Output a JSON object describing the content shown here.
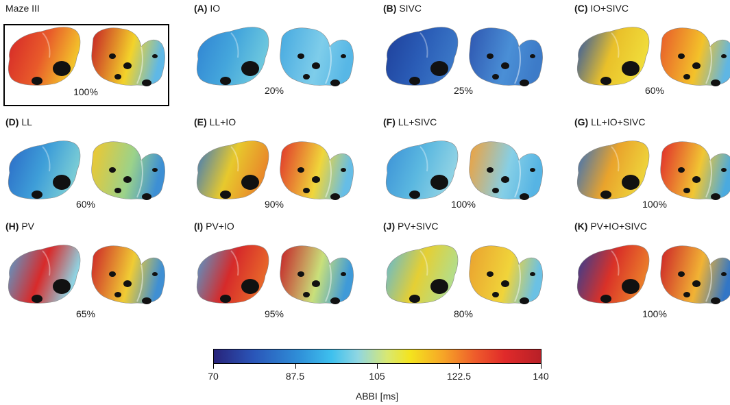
{
  "panels": [
    {
      "tag": "",
      "label": "Maze III",
      "pct": "100%",
      "highlight": true,
      "palette": {
        "l1": "#d42428",
        "l2": "#e85a2a",
        "l3": "#f3c22a",
        "r1": "#c51f26",
        "r2": "#f3d32a",
        "r3": "#5fb8e6"
      }
    },
    {
      "tag": "(A)",
      "label": "IO",
      "pct": "20%",
      "palette": {
        "l1": "#2f82d2",
        "l2": "#44a6dc",
        "l3": "#6cc7de",
        "r1": "#46a9e0",
        "r2": "#7ecdea",
        "r3": "#57b7e6"
      }
    },
    {
      "tag": "(B)",
      "label": "SIVC",
      "pct": "25%",
      "palette": {
        "l1": "#1e3f9a",
        "l2": "#2a5cb6",
        "l3": "#3a76c6",
        "r1": "#2e56b0",
        "r2": "#4a8fd6",
        "r3": "#3d7bc8"
      }
    },
    {
      "tag": "(C)",
      "label": "IO+SIVC",
      "pct": "60%",
      "palette": {
        "l1": "#2350ac",
        "l2": "#e9c02a",
        "l3": "#f0dc3a",
        "r1": "#e85a2a",
        "r2": "#f3c22a",
        "r3": "#5fb6e4"
      }
    },
    {
      "tag": "(D)",
      "label": "LL",
      "pct": "60%",
      "palette": {
        "l1": "#2a68c6",
        "l2": "#3e9ed8",
        "l3": "#78cbd6",
        "r1": "#f2c72c",
        "r2": "#9bd28a",
        "r3": "#3d8fd4"
      }
    },
    {
      "tag": "(E)",
      "label": "LL+IO",
      "pct": "90%",
      "palette": {
        "l1": "#3374c6",
        "l2": "#e7c92d",
        "l3": "#e98a2a",
        "r1": "#e0332a",
        "r2": "#f0d63a",
        "r3": "#66bde6"
      }
    },
    {
      "tag": "(F)",
      "label": "LL+SIVC",
      "pct": "100%",
      "palette": {
        "l1": "#3a8fd6",
        "l2": "#5bb8e0",
        "l3": "#8fd2e4",
        "r1": "#f2a038",
        "r2": "#86cfe6",
        "r3": "#56b4e4"
      }
    },
    {
      "tag": "(G)",
      "label": "LL+IO+SIVC",
      "pct": "100%",
      "palette": {
        "l1": "#2e6ec4",
        "l2": "#e9a32c",
        "l3": "#eed23a",
        "r1": "#e02a2a",
        "r2": "#f1c633",
        "r3": "#4aaadf"
      }
    },
    {
      "tag": "(H)",
      "label": "PV",
      "pct": "65%",
      "palette": {
        "l1": "#4da7dc",
        "l2": "#d82a2a",
        "l3": "#8fd3e2",
        "r1": "#cc2228",
        "r2": "#f0cc34",
        "r3": "#3f8fd3"
      }
    },
    {
      "tag": "(I)",
      "label": "PV+IO",
      "pct": "95%",
      "palette": {
        "l1": "#4aa2da",
        "l2": "#d62a2a",
        "l3": "#e7652a",
        "r1": "#c51f26",
        "r2": "#c9e07a",
        "r3": "#3f9ad8"
      }
    },
    {
      "tag": "(J)",
      "label": "PV+SIVC",
      "pct": "80%",
      "palette": {
        "l1": "#58b8df",
        "l2": "#e5cf34",
        "l3": "#b4dd88",
        "r1": "#eaa12f",
        "r2": "#f0d43a",
        "r3": "#6bc1e4"
      }
    },
    {
      "tag": "(K)",
      "label": "PV+IO+SIVC",
      "pct": "100%",
      "palette": {
        "l1": "#263f9c",
        "l2": "#d93128",
        "l3": "#ea7b2a",
        "r1": "#cc2228",
        "r2": "#f1b334",
        "r3": "#3276c6"
      }
    }
  ],
  "colorbar": {
    "title": "ABBI [ms]",
    "min": 70,
    "max": 140,
    "ticks": [
      "70",
      "87.5",
      "105",
      "122.5",
      "140"
    ],
    "colormap": "jet"
  }
}
